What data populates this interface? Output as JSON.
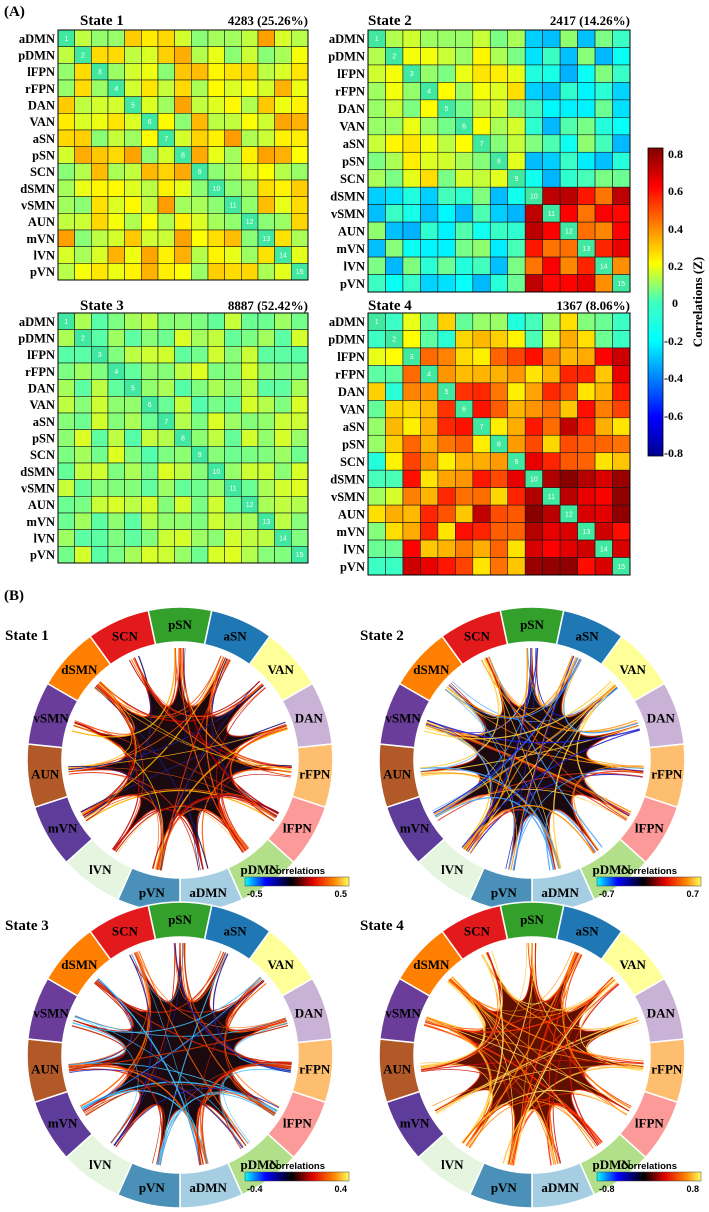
{
  "panel_a_label": "(A)",
  "panel_b_label": "(B)",
  "network_labels": [
    "aDMN",
    "pDMN",
    "lFPN",
    "rFPN",
    "DAN",
    "VAN",
    "aSN",
    "pSN",
    "SCN",
    "dSMN",
    "vSMN",
    "AUN",
    "mVN",
    "lVN",
    "pVN"
  ],
  "colors": {
    "aDMN": "#a6cee3",
    "pDMN": "#b2df8a",
    "lFPN": "#fb9a99",
    "rFPN": "#fdbf6f",
    "DAN": "#cab2d6",
    "VAN": "#ffff99",
    "aSN": "#1f78b4",
    "pSN": "#33a02c",
    "SCN": "#e31a1c",
    "dSMN": "#ff7f00",
    "vSMN": "#6a3d9a",
    "AUN": "#b15928",
    "mVN": "#5e3c99",
    "lVN": "#e5f5e0",
    "pVN": "#4a90b8"
  },
  "colorbar": {
    "title": "Correlations (Z)",
    "ticks": [
      "0.8",
      "0.6",
      "0.4",
      "0.2",
      "0",
      "-0.2",
      "-0.4",
      "-0.6",
      "-0.8"
    ],
    "range": [
      -0.8,
      0.8
    ]
  },
  "chart_data": [
    {
      "type": "heatmap",
      "title": "State 1",
      "count_label": "4283 (25.26%)",
      "pattern": "mixed_warm",
      "seed": 11,
      "vmin": -0.8,
      "vmax": 0.8
    },
    {
      "type": "heatmap",
      "title": "State 2",
      "count_label": "2417 (14.26%)",
      "pattern": "segregated",
      "seed": 23,
      "vmin": -0.8,
      "vmax": 0.8
    },
    {
      "type": "heatmap",
      "title": "State 3",
      "count_label": "8887 (52.42%)",
      "pattern": "weak",
      "seed": 37,
      "vmin": -0.8,
      "vmax": 0.8
    },
    {
      "type": "heatmap",
      "title": "State 4",
      "count_label": "1367 (8.06%)",
      "pattern": "strong",
      "seed": 53,
      "vmin": -0.8,
      "vmax": 0.8
    }
  ],
  "circular_data": [
    {
      "title": "State 1",
      "colorbar_title": "Correlations",
      "tick_min": "-0.5",
      "tick_max": "0.5",
      "mode": "dark_red"
    },
    {
      "title": "State 2",
      "colorbar_title": "Correlations",
      "tick_min": "-0.7",
      "tick_max": "0.7",
      "mode": "blue_mix"
    },
    {
      "title": "State 3",
      "colorbar_title": "Correlations",
      "tick_min": "-0.4",
      "tick_max": "0.4",
      "mode": "dark"
    },
    {
      "title": "State 4",
      "colorbar_title": "Correlations",
      "tick_min": "-0.8",
      "tick_max": "0.8",
      "mode": "hot"
    }
  ],
  "ring_order": [
    "pSN",
    "aSN",
    "VAN",
    "DAN",
    "rFPN",
    "lFPN",
    "pDMN",
    "aDMN",
    "pVN",
    "lVN",
    "mVN",
    "AUN",
    "vSMN",
    "dSMN",
    "SCN"
  ]
}
